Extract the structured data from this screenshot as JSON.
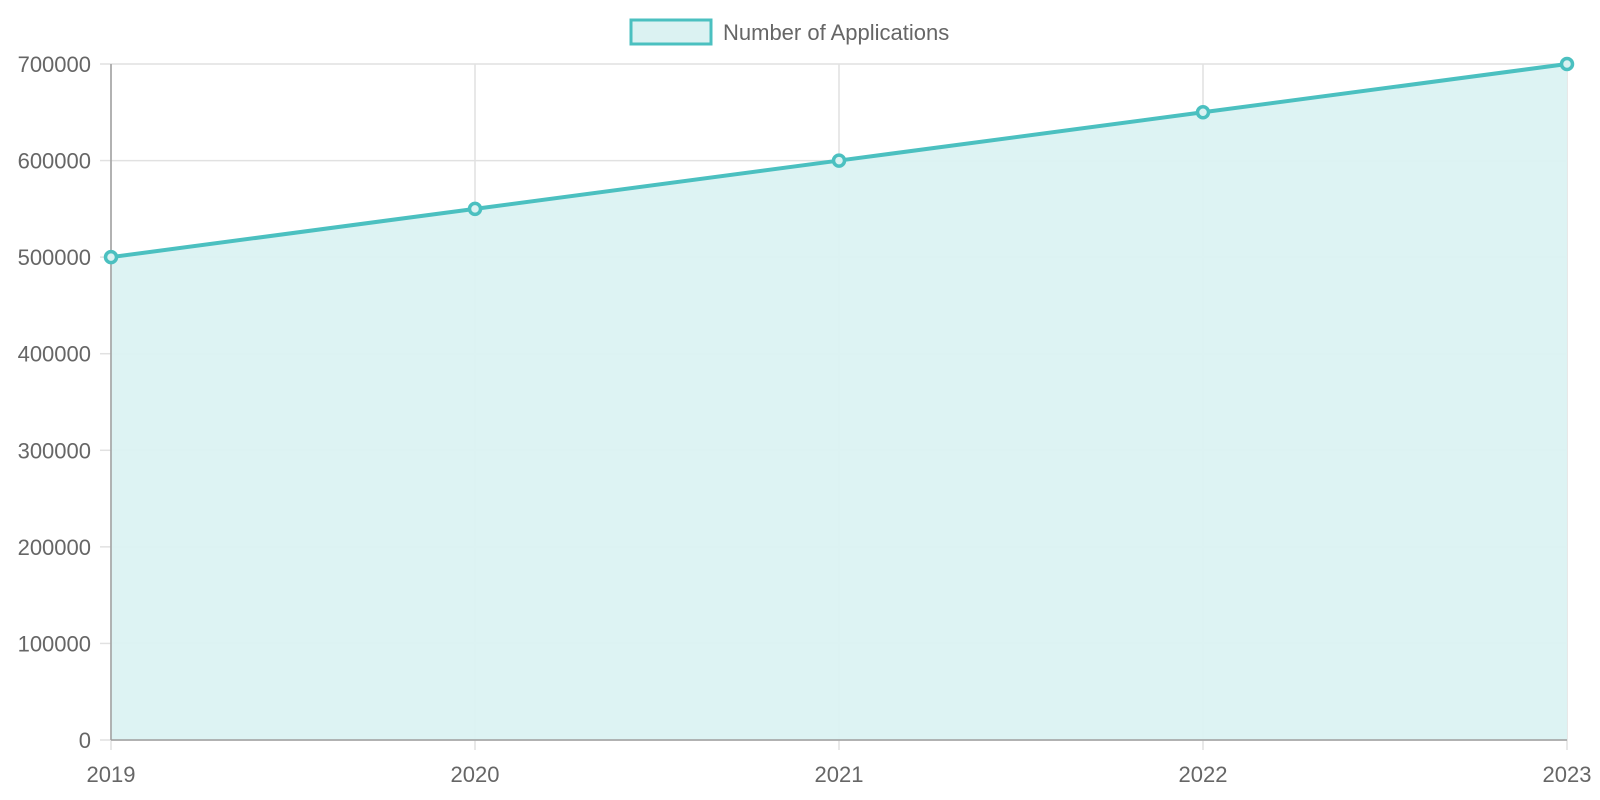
{
  "chart_data": {
    "type": "area",
    "categories": [
      "2019",
      "2020",
      "2021",
      "2022",
      "2023"
    ],
    "series": [
      {
        "name": "Number of Applications",
        "values": [
          500000,
          550000,
          600000,
          650000,
          700000
        ]
      }
    ],
    "ylim": [
      0,
      700000
    ],
    "yticks": [
      "0",
      "100000",
      "200000",
      "300000",
      "400000",
      "500000",
      "600000",
      "700000"
    ],
    "grid": true,
    "legend_position": "top-center",
    "colors": {
      "line": "#4bc0c0",
      "fill": "#dbf2f2",
      "grid": "#e1e1e1",
      "axis": "#9e9e9e",
      "text": "#666666"
    }
  }
}
